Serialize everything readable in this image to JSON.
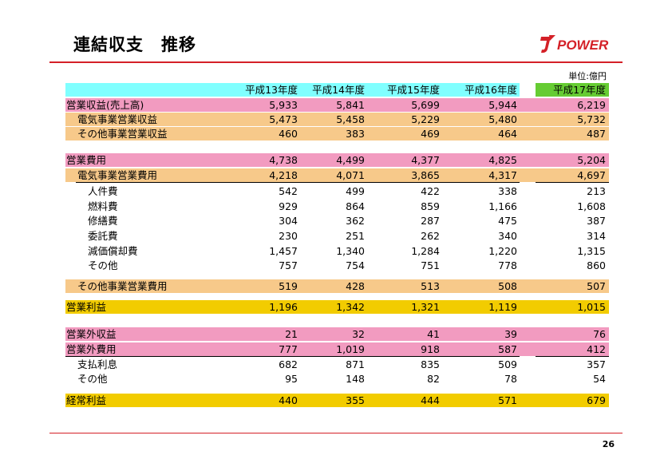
{
  "title": "連結収支　推移",
  "logo_text": "POWER",
  "unit": "単位:億円",
  "page_number": "26",
  "colors": {
    "accent_red": "#d42027",
    "header_cyan": "#80ffff",
    "header_green": "#66cc33",
    "pink": "#f29bc0",
    "peach": "#f7c98a",
    "gold": "#f2cc00"
  },
  "columns": [
    "平成13年度",
    "平成14年度",
    "平成15年度",
    "平成16年度",
    "平成17年度"
  ],
  "rows": [
    {
      "label": "営業収益(売上高)",
      "values": [
        "5,933",
        "5,841",
        "5,699",
        "5,944",
        "6,219"
      ]
    },
    {
      "label": "電気事業営業収益",
      "values": [
        "5,473",
        "5,458",
        "5,229",
        "5,480",
        "5,732"
      ]
    },
    {
      "label": "その他事業営業収益",
      "values": [
        "460",
        "383",
        "469",
        "464",
        "487"
      ]
    },
    {
      "label": "営業費用",
      "values": [
        "4,738",
        "4,499",
        "4,377",
        "4,825",
        "5,204"
      ]
    },
    {
      "label": "電気事業営業費用",
      "values": [
        "4,218",
        "4,071",
        "3,865",
        "4,317",
        "4,697"
      ]
    },
    {
      "label": "人件費",
      "values": [
        "542",
        "499",
        "422",
        "338",
        "213"
      ]
    },
    {
      "label": "燃料費",
      "values": [
        "929",
        "864",
        "859",
        "1,166",
        "1,608"
      ]
    },
    {
      "label": "修繕費",
      "values": [
        "304",
        "362",
        "287",
        "475",
        "387"
      ]
    },
    {
      "label": "委託費",
      "values": [
        "230",
        "251",
        "262",
        "340",
        "314"
      ]
    },
    {
      "label": "減価償却費",
      "values": [
        "1,457",
        "1,340",
        "1,284",
        "1,220",
        "1,315"
      ]
    },
    {
      "label": "その他",
      "values": [
        "757",
        "754",
        "751",
        "778",
        "860"
      ]
    },
    {
      "label": "その他事業営業費用",
      "values": [
        "519",
        "428",
        "513",
        "508",
        "507"
      ]
    },
    {
      "label": "営業利益",
      "values": [
        "1,196",
        "1,342",
        "1,321",
        "1,119",
        "1,015"
      ]
    },
    {
      "label": "営業外収益",
      "values": [
        "21",
        "32",
        "41",
        "39",
        "76"
      ]
    },
    {
      "label": "営業外費用",
      "values": [
        "777",
        "1,019",
        "918",
        "587",
        "412"
      ]
    },
    {
      "label": "支払利息",
      "values": [
        "682",
        "871",
        "835",
        "509",
        "357"
      ]
    },
    {
      "label": "その他",
      "values": [
        "95",
        "148",
        "82",
        "78",
        "54"
      ]
    },
    {
      "label": "経常利益",
      "values": [
        "440",
        "355",
        "444",
        "571",
        "679"
      ]
    }
  ]
}
